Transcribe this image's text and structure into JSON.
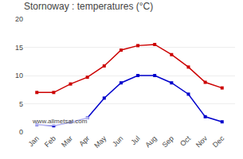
{
  "chart_data": {
    "type": "line",
    "title": "Stornoway : temperatures (°C)",
    "categories": [
      "Jan",
      "Feb",
      "Mar",
      "Apr",
      "May",
      "Jun",
      "Jul",
      "Aug",
      "Sep",
      "Oct",
      "Nov",
      "Dec"
    ],
    "series": [
      {
        "color": "#cc0000",
        "marker": "square",
        "values": [
          7.0,
          7.0,
          8.5,
          9.7,
          11.7,
          14.5,
          15.3,
          15.5,
          13.7,
          11.5,
          8.8,
          7.8
        ]
      },
      {
        "color": "#0000cc",
        "marker": "square",
        "values": [
          1.3,
          1.1,
          1.7,
          2.5,
          6.0,
          8.7,
          10.0,
          10.0,
          8.7,
          6.7,
          2.7,
          1.8
        ]
      }
    ],
    "ylim": [
      0,
      20
    ],
    "yticks": [
      0,
      5,
      10,
      15,
      20
    ],
    "grid": true,
    "annotations": [
      "www.allmetsat.com"
    ]
  }
}
